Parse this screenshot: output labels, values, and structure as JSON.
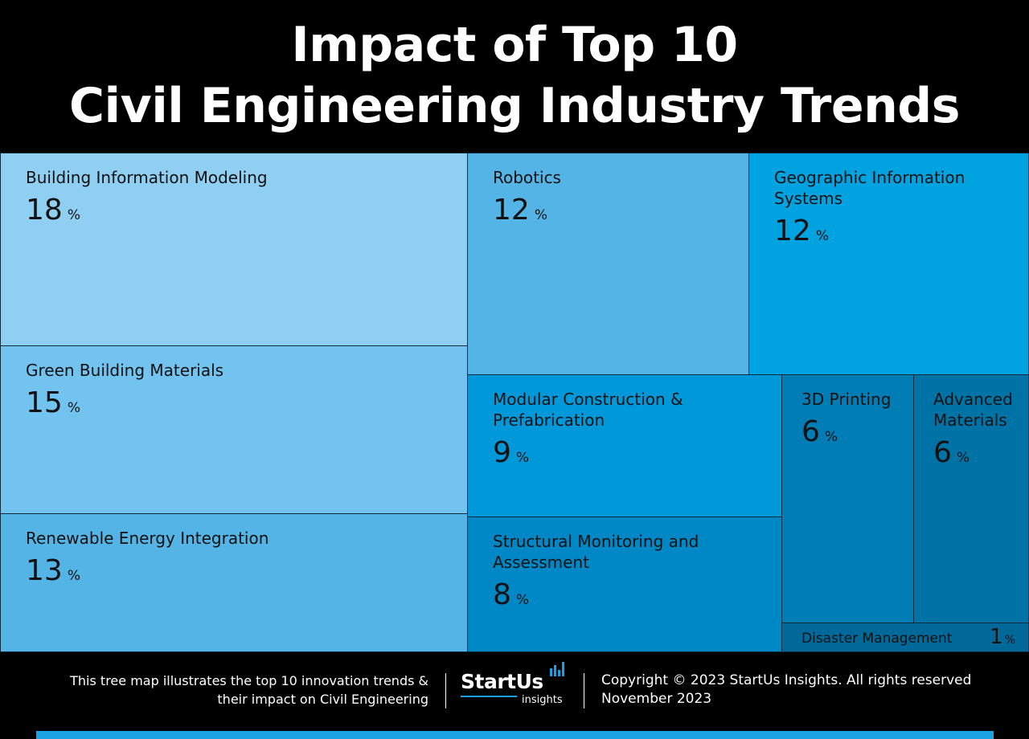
{
  "title": {
    "line1": "Impact of Top 10",
    "line2": "Civil Engineering Industry Trends"
  },
  "chart_data": {
    "type": "treemap",
    "unit": "%",
    "items": [
      {
        "name": "Building Information Modeling",
        "value": 18,
        "color": "#8fcff2"
      },
      {
        "name": "Green Building Materials",
        "value": 15,
        "color": "#72c3ef"
      },
      {
        "name": "Renewable Energy Integration",
        "value": 13,
        "color": "#55b4e6"
      },
      {
        "name": "Robotics",
        "value": 12,
        "color": "#55b4e6"
      },
      {
        "name": "Geographic Information Systems",
        "value": 12,
        "color": "#00a3e0"
      },
      {
        "name": "Modular Construction & Prefabrication",
        "value": 9,
        "color": "#0098d9"
      },
      {
        "name": "Structural Monitoring and Assessment",
        "value": 8,
        "color": "#0088c6"
      },
      {
        "name": "3D Printing",
        "value": 6,
        "color": "#007db4"
      },
      {
        "name": "Advanced Materials",
        "value": 6,
        "color": "#0073a6"
      },
      {
        "name": "Disaster Management",
        "value": 1,
        "color": "#00699a"
      }
    ]
  },
  "footer": {
    "description_line1": "This tree map illustrates the top 10 innovation trends &",
    "description_line2": "their impact on Civil Engineering",
    "logo_brand": "StartUs",
    "logo_sub": "insights",
    "copyright": "Copyright © 2023 StartUs Insights. All rights reserved",
    "date": "November 2023"
  }
}
